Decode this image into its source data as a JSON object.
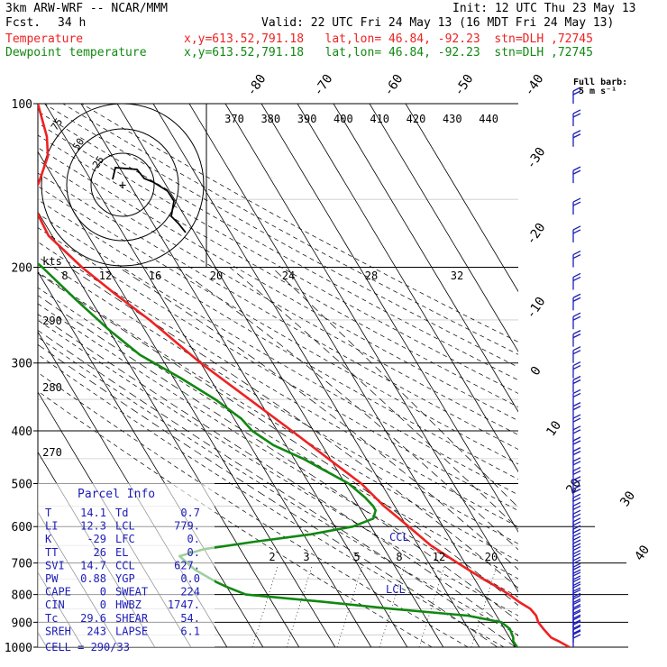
{
  "header": {
    "model": "3km ARW-WRF -- NCAR/MMM",
    "init": "Init: 12 UTC Thu 23 May 13",
    "fcst_label": "Fcst.",
    "fcst_value": "34 h",
    "valid": "Valid: 22 UTC Fri 24 May 13 (16 MDT Fri 24 May 13)",
    "temp_label": "Temperature",
    "temp_loc": "x,y=613.52,791.18   lat,lon= 46.84, -92.23  stn=DLH ,72745",
    "dew_label": "Dewpoint temperature",
    "dew_loc": "x,y=613.52,791.18   lat,lon= 46.84, -92.23  stn=DLH ,72745"
  },
  "wind_key": {
    "line1": "Full barb:",
    "line2": "5 m s⁻¹"
  },
  "colors": {
    "temperature": "#ee2222",
    "dewpoint": "#118811",
    "barb": "#1c1cb8",
    "info": "#1c1cb8"
  },
  "chart_data": {
    "type": "line",
    "title": "Skew-T log-P sounding",
    "pressure_ticks": [
      100,
      200,
      300,
      400,
      500,
      600,
      700,
      800,
      900,
      1000
    ],
    "temp_ticks": [
      -80,
      -70,
      -60,
      -50,
      -40,
      -30,
      -20,
      -10,
      0,
      10,
      20,
      30,
      40
    ],
    "theta_labels": [
      370,
      380,
      390,
      400,
      410,
      420,
      430,
      440
    ],
    "mixing_ratio_labels": [
      "2",
      "3",
      "5",
      "8",
      "12",
      "20"
    ],
    "hodograph_speed_labels": [
      "kts",
      "8",
      "12",
      "16",
      "20",
      "24",
      "28",
      "32"
    ],
    "hodograph_ring_labels": [
      "75",
      "50",
      "25"
    ],
    "height_labels": [
      "290",
      "280",
      "270"
    ],
    "lcl_labels": [
      "CCL",
      "LCL"
    ],
    "series": [
      {
        "name": "Temperature",
        "pressure_hpa": [
          1000,
          975,
          960,
          925,
          900,
          875,
          850,
          825,
          800,
          775,
          750,
          700,
          650,
          600,
          550,
          500,
          450,
          400,
          350,
          300,
          250,
          225,
          200,
          175,
          150,
          140,
          125,
          115,
          100
        ],
        "temp_c": [
          15.0,
          13.0,
          11.5,
          10.8,
          10.5,
          11.0,
          10.5,
          8.5,
          7.0,
          5.0,
          2.5,
          -2.0,
          -6.5,
          -9.5,
          -13.0,
          -15.5,
          -20.5,
          -26.0,
          -32.5,
          -40.0,
          -47.0,
          -52.0,
          -57.0,
          -61.0,
          -60.0,
          -55.0,
          -48.0,
          -45.0,
          -42.0
        ]
      },
      {
        "name": "Dewpoint temperature",
        "pressure_hpa": [
          1000,
          975,
          960,
          925,
          900,
          875,
          850,
          825,
          800,
          775,
          760,
          740,
          720,
          700,
          680,
          660,
          640,
          620,
          600,
          580,
          560,
          550,
          530,
          500,
          470,
          450,
          425,
          400,
          380,
          350,
          320,
          290,
          260,
          230,
          200,
          180,
          160,
          140,
          125,
          110,
          100
        ],
        "temp_c": [
          0.5,
          0.4,
          1.0,
          1.5,
          0.3,
          -8.0,
          -28.0,
          -46.0,
          -66.0,
          -70.0,
          -72.0,
          -74.0,
          -76.0,
          -77.0,
          -78.0,
          -70.0,
          -55.0,
          -38.0,
          -25.0,
          -18.0,
          -16.0,
          -16.0,
          -16.8,
          -19.0,
          -24.0,
          -27.5,
          -33.5,
          -37.0,
          -38.0,
          -42.0,
          -48.0,
          -55.5,
          -60.0,
          -64.0,
          -68.0,
          -72.0,
          -76.0,
          -81.0,
          -86.0,
          -89.0,
          -90.0
        ]
      }
    ],
    "wind_levels_hpa": [
      1000,
      980,
      960,
      940,
      920,
      900,
      880,
      860,
      840,
      820,
      800,
      780,
      760,
      740,
      720,
      700,
      680,
      660,
      640,
      620,
      600,
      580,
      560,
      540,
      520,
      500,
      480,
      460,
      440,
      420,
      400,
      380,
      360,
      340,
      320,
      300,
      280,
      260,
      240,
      220,
      200,
      180,
      160,
      140,
      120,
      110,
      100
    ],
    "wind_speed_ms": [
      3,
      3,
      3,
      3,
      3,
      3,
      3,
      3,
      3,
      3,
      3,
      3,
      3,
      3,
      3,
      3,
      3,
      3,
      3,
      3,
      3,
      3,
      3,
      3,
      3,
      3,
      3,
      3,
      3,
      3,
      3,
      3,
      3,
      3,
      3,
      3,
      3,
      3,
      3,
      3,
      3,
      3,
      3,
      3,
      3,
      3,
      3
    ]
  },
  "parcel": {
    "title": "Parcel Info",
    "rows": [
      [
        "T",
        "14.1",
        "Td",
        "0.7"
      ],
      [
        "LI",
        "12.3",
        "LCL",
        "779."
      ],
      [
        "K",
        "-29",
        "LFC",
        "0."
      ],
      [
        "TT",
        "26",
        "EL",
        "0."
      ],
      [
        "SVI",
        "14.7",
        "CCL",
        "627."
      ],
      [
        "PW",
        "0.88",
        "YGP",
        "0.0"
      ],
      [
        "CAPE",
        "0",
        "SWEAT",
        "224"
      ],
      [
        "CIN",
        "0",
        "HWBZ",
        "1747."
      ],
      [
        "Tc",
        "29.6",
        "SHEAR",
        "54."
      ],
      [
        "SREH",
        "243",
        "LAPSE",
        "6.1"
      ]
    ],
    "cell_label": "CELL = 290/33"
  }
}
